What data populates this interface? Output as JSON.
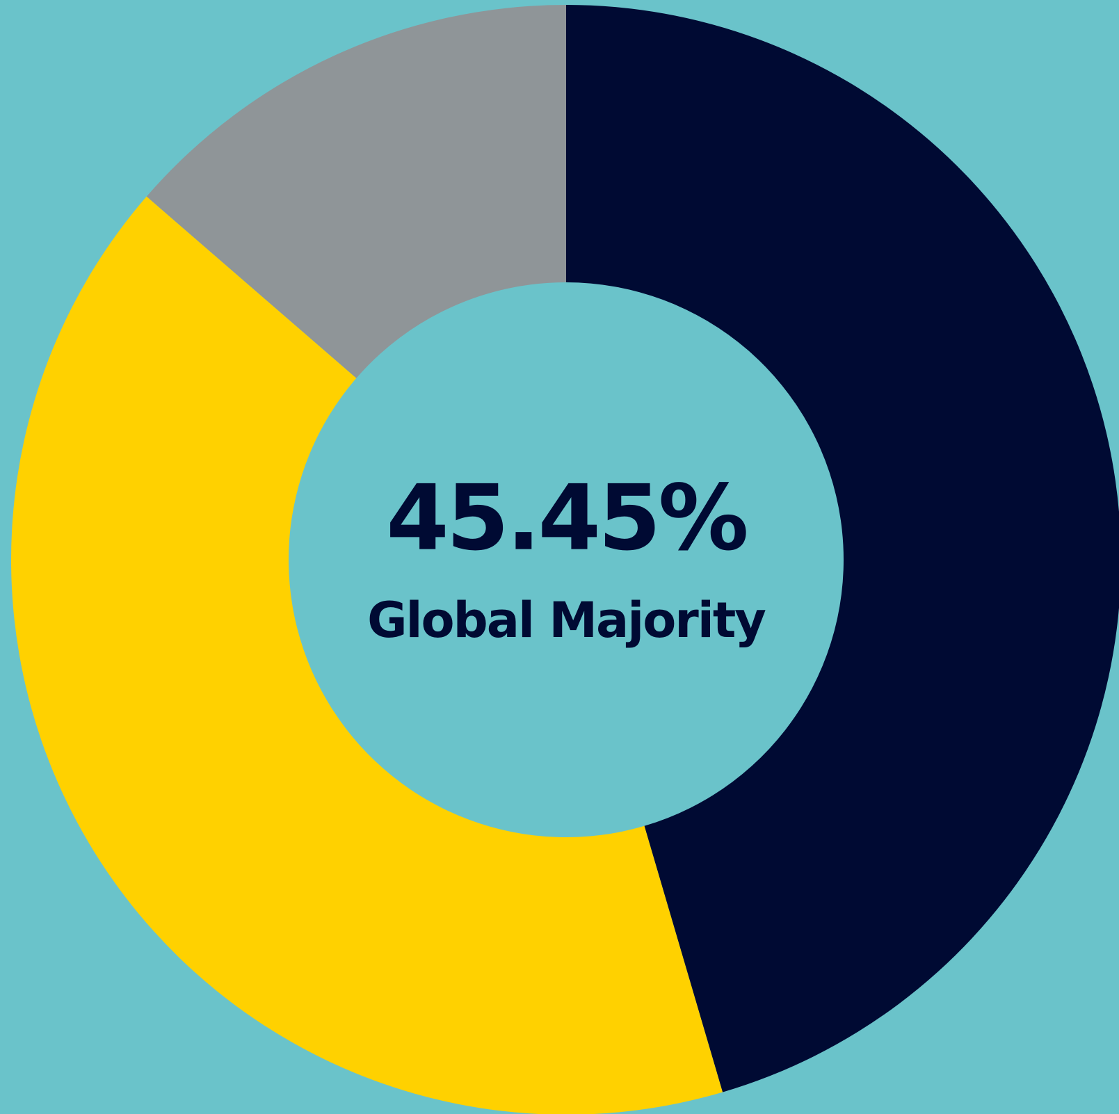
{
  "chart_data": {
    "type": "donut",
    "categories": [
      "Global Majority",
      null,
      null
    ],
    "values": [
      45.45,
      40.91,
      13.64
    ],
    "value_labels": [
      "45.45%",
      null,
      null
    ],
    "colors": [
      "#000a33",
      "#ffd100",
      "#8f9598"
    ],
    "start_angle": 0,
    "direction": "clockwise"
  }
}
